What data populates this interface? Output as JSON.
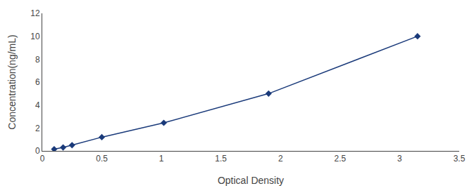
{
  "chart_data": {
    "type": "line",
    "x": [
      0.1,
      0.175,
      0.25,
      0.5,
      1.02,
      1.9,
      3.15
    ],
    "values": [
      0.15,
      0.3,
      0.5,
      1.2,
      2.45,
      5.0,
      10.0
    ],
    "color": "#1a3a7a",
    "marker": "diamond",
    "xlabel": "Optical Density",
    "ylabel": "Concentration(ng/mL)",
    "xlim": [
      0,
      3.5
    ],
    "ylim": [
      0,
      12
    ],
    "xticks": [
      0,
      0.5,
      1.0,
      1.5,
      2.0,
      2.5,
      3.0,
      3.5
    ],
    "yticks": [
      0,
      2,
      4,
      6,
      8,
      10,
      12
    ],
    "grid": false
  }
}
